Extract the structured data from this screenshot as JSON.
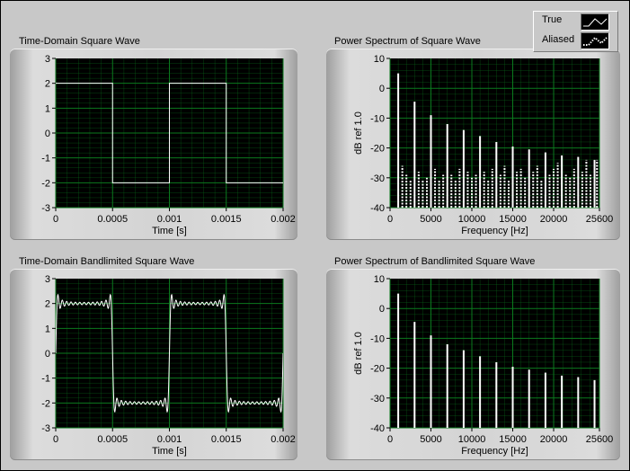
{
  "legend": {
    "entries": [
      {
        "label": "True",
        "style": "line"
      },
      {
        "label": "Aliased",
        "style": "dotted-line"
      }
    ]
  },
  "colors": {
    "plot_background": "#000000",
    "grid": "#0b7a1e",
    "trace": "#ffffff",
    "panel": "#c8c8c8"
  },
  "chart_data": [
    {
      "type": "line",
      "title": "Time-Domain Square Wave",
      "xlabel": "Time [s]",
      "ylabel": "",
      "xlim": [
        0,
        0.002
      ],
      "ylim": [
        -3,
        3
      ],
      "xticks": [
        "0",
        "0.0005",
        "0.001",
        "0.0015",
        "0.002"
      ],
      "yticks": [
        "3",
        "2",
        "1",
        "0",
        "-1",
        "-2",
        "-3"
      ],
      "grid": true,
      "series": [
        {
          "name": "",
          "x": [
            0,
            0.0005,
            0.0005,
            0.001,
            0.001,
            0.0015,
            0.0015,
            0.002
          ],
          "y": [
            2,
            2,
            -2,
            -2,
            2,
            2,
            -2,
            -2
          ]
        }
      ]
    },
    {
      "type": "bar",
      "title": "Power Spectrum of Square Wave",
      "xlabel": "Frequency [Hz]",
      "ylabel": "dB ref 1.0",
      "xlim": [
        0,
        25600
      ],
      "ylim": [
        -40,
        10
      ],
      "xticks": [
        "0",
        "5000",
        "10000",
        "15000",
        "20000",
        "25600"
      ],
      "yticks": [
        "10",
        "0",
        "-10",
        "-20",
        "-30",
        "-40"
      ],
      "grid": true,
      "series": [
        {
          "name": "True",
          "x": [
            1000,
            3000,
            5000,
            7000,
            9000,
            11000,
            13000,
            15000,
            17000,
            19000,
            21000,
            23000,
            25000
          ],
          "y": [
            5,
            -4.5,
            -9,
            -12,
            -14,
            -16,
            -18,
            -19.5,
            -20.5,
            -21.5,
            -22.5,
            -23,
            -24
          ]
        },
        {
          "name": "Aliased",
          "x": [
            1500,
            2000,
            2500,
            3500,
            4000,
            4500,
            5500,
            6000,
            6500,
            7500,
            8000,
            8500,
            9500,
            10000,
            10500,
            11500,
            12000,
            12500,
            13500,
            14000,
            14500,
            15500,
            16000,
            16500,
            17500,
            18000,
            18500,
            19500,
            20000,
            20500,
            21500,
            22000,
            22500,
            23500,
            24000,
            24500,
            25300
          ],
          "y": [
            -26,
            -29,
            -31,
            -28,
            -31,
            -30,
            -27,
            -31,
            -29,
            -29,
            -31,
            -27,
            -28,
            -30,
            -29,
            -28,
            -31,
            -27,
            -29,
            -26,
            -31,
            -28,
            -27,
            -30,
            -28,
            -26,
            -31,
            -29,
            -27,
            -25,
            -29,
            -30,
            -27,
            -28,
            -24,
            -29,
            -24
          ]
        }
      ]
    },
    {
      "type": "line",
      "title": "Time-Domain Bandlimited Square Wave",
      "xlabel": "Time [s]",
      "ylabel": "",
      "xlim": [
        0,
        0.002
      ],
      "ylim": [
        -3,
        3
      ],
      "xticks": [
        "0",
        "0.0005",
        "0.001",
        "0.0015",
        "0.002"
      ],
      "yticks": [
        "3",
        "2",
        "1",
        "0",
        "-1",
        "-2",
        "-3"
      ],
      "grid": true,
      "series": [
        {
          "name": "",
          "fundamental_hz": 1000,
          "harmonics": [
            1,
            3,
            5,
            7,
            9,
            11,
            13,
            15,
            17,
            19,
            21,
            23,
            25
          ],
          "amplitude": 2
        }
      ]
    },
    {
      "type": "bar",
      "title": "Power Spectrum of Bandlimited Square Wave",
      "xlabel": "Frequency [Hz]",
      "ylabel": "dB ref 1.0",
      "xlim": [
        0,
        25600
      ],
      "ylim": [
        -40,
        10
      ],
      "xticks": [
        "0",
        "5000",
        "10000",
        "15000",
        "20000",
        "25600"
      ],
      "yticks": [
        "10",
        "0",
        "-10",
        "-20",
        "-30",
        "-40"
      ],
      "grid": true,
      "series": [
        {
          "name": "",
          "x": [
            1000,
            3000,
            5000,
            7000,
            9000,
            11000,
            13000,
            15000,
            17000,
            19000,
            21000,
            23000,
            25000
          ],
          "y": [
            5,
            -4.5,
            -9,
            -12,
            -14,
            -16,
            -18,
            -19.5,
            -20.5,
            -21.5,
            -22.5,
            -23,
            -24
          ]
        }
      ]
    }
  ]
}
